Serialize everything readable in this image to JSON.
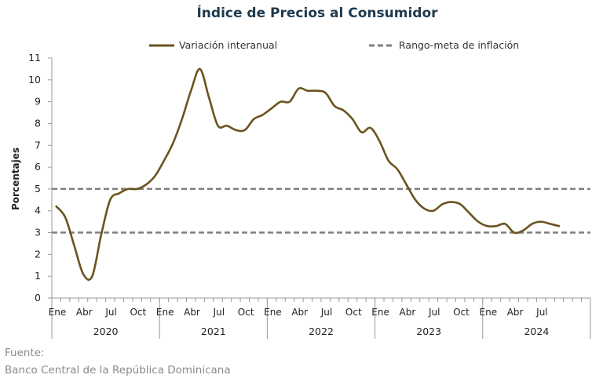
{
  "chart_data": {
    "type": "line",
    "title": "Índice de Precios al Consumidor",
    "ylabel": "Porcentajes",
    "xlabel": "",
    "ylim": [
      0,
      11
    ],
    "yticks": [
      "0",
      "1",
      "2",
      "3",
      "4",
      "5",
      "6",
      "7",
      "8",
      "9",
      "10",
      "11"
    ],
    "legend": {
      "placement": "top",
      "series_label": "Variación interanual",
      "target_label": "Rango-meta de inflación"
    },
    "month_labels": [
      "Ene",
      "Abr",
      "Jul",
      "Oct",
      "Ene",
      "Abr",
      "Jul",
      "Oct",
      "Ene",
      "Abr",
      "Jul",
      "Oct",
      "Ene",
      "Abr",
      "Jul",
      "Oct",
      "Ene",
      "Abr",
      "Jul"
    ],
    "years": [
      "2020",
      "2021",
      "2022",
      "2023",
      "2024"
    ],
    "target_range": [
      3,
      5
    ],
    "series": [
      {
        "name": "Variación interanual",
        "color": "#6b5320",
        "x": [
          "2020-01",
          "2020-02",
          "2020-03",
          "2020-04",
          "2020-05",
          "2020-06",
          "2020-07",
          "2020-08",
          "2020-09",
          "2020-10",
          "2020-11",
          "2020-12",
          "2021-01",
          "2021-02",
          "2021-03",
          "2021-04",
          "2021-05",
          "2021-06",
          "2021-07",
          "2021-08",
          "2021-09",
          "2021-10",
          "2021-11",
          "2021-12",
          "2022-01",
          "2022-02",
          "2022-03",
          "2022-04",
          "2022-05",
          "2022-06",
          "2022-07",
          "2022-08",
          "2022-09",
          "2022-10",
          "2022-11",
          "2022-12",
          "2023-01",
          "2023-02",
          "2023-03",
          "2023-04",
          "2023-05",
          "2023-06",
          "2023-07",
          "2023-08",
          "2023-09",
          "2023-10",
          "2023-11",
          "2023-12",
          "2024-01",
          "2024-02",
          "2024-03",
          "2024-04",
          "2024-05",
          "2024-06",
          "2024-07",
          "2024-08",
          "2024-09"
        ],
        "values": [
          4.2,
          3.7,
          2.4,
          1.1,
          1.0,
          2.9,
          4.5,
          4.8,
          5.0,
          5.0,
          5.2,
          5.6,
          6.3,
          7.1,
          8.2,
          9.5,
          10.5,
          9.2,
          7.9,
          7.9,
          7.7,
          7.7,
          8.2,
          8.4,
          8.7,
          9.0,
          9.0,
          9.6,
          9.5,
          9.5,
          9.4,
          8.8,
          8.6,
          8.2,
          7.6,
          7.8,
          7.2,
          6.3,
          5.9,
          5.2,
          4.5,
          4.1,
          4.0,
          4.3,
          4.4,
          4.3,
          3.9,
          3.5,
          3.3,
          3.3,
          3.4,
          3.0,
          3.1,
          3.4,
          3.5,
          3.4,
          3.3
        ]
      }
    ],
    "target_color": "#7f7f7f",
    "grid": false
  },
  "source": {
    "label": "Fuente:",
    "text": "Banco Central de la República Dominicana"
  }
}
